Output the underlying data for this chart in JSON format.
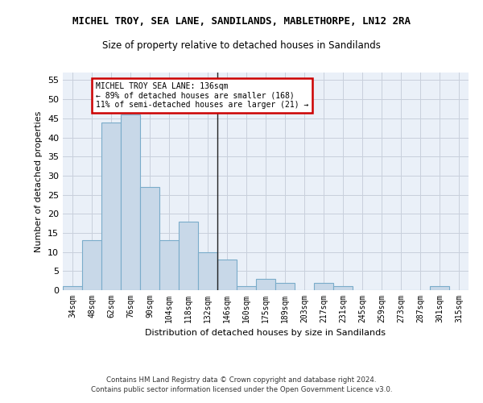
{
  "title_line1": "MICHEL TROY, SEA LANE, SANDILANDS, MABLETHORPE, LN12 2RA",
  "title_line2": "Size of property relative to detached houses in Sandilands",
  "xlabel": "Distribution of detached houses by size in Sandilands",
  "ylabel": "Number of detached properties",
  "categories": [
    "34sqm",
    "48sqm",
    "62sqm",
    "76sqm",
    "90sqm",
    "104sqm",
    "118sqm",
    "132sqm",
    "146sqm",
    "160sqm",
    "175sqm",
    "189sqm",
    "203sqm",
    "217sqm",
    "231sqm",
    "245sqm",
    "259sqm",
    "273sqm",
    "287sqm",
    "301sqm",
    "315sqm"
  ],
  "values": [
    1,
    13,
    44,
    46,
    27,
    13,
    18,
    10,
    8,
    1,
    3,
    2,
    0,
    2,
    1,
    0,
    0,
    0,
    0,
    1,
    0
  ],
  "bar_color": "#c8d8e8",
  "bar_edgecolor": "#7aacca",
  "highlight_index": 7,
  "highlight_line_color": "#222222",
  "annotation_text": "MICHEL TROY SEA LANE: 136sqm\n← 89% of detached houses are smaller (168)\n11% of semi-detached houses are larger (21) →",
  "annotation_box_color": "#cc0000",
  "ylim": [
    0,
    57
  ],
  "yticks": [
    0,
    5,
    10,
    15,
    20,
    25,
    30,
    35,
    40,
    45,
    50,
    55
  ],
  "grid_color": "#c8d0dc",
  "background_color": "#eaf0f8",
  "footer_line1": "Contains HM Land Registry data © Crown copyright and database right 2024.",
  "footer_line2": "Contains public sector information licensed under the Open Government Licence v3.0."
}
